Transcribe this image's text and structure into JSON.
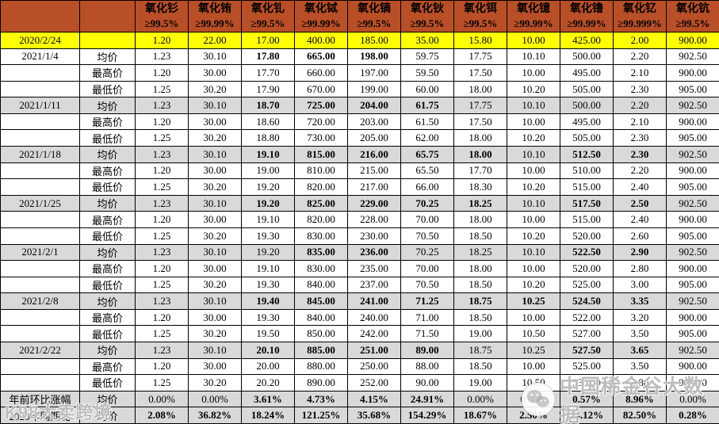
{
  "colors": {
    "header_bg": "#B94F26",
    "header_text": "#FFFFFF",
    "highlight_yellow": "#FFFF00",
    "row_gray": "#D9D9D9",
    "value_red": "#FF0000",
    "value_black": "#000000"
  },
  "watermarks": {
    "left": "K98大卖跨境",
    "right": "中国稀金谷大数据",
    "right_icon": "wechat-icon"
  },
  "table": {
    "corner_date": "",
    "corner_label": "",
    "columns": [
      {
        "name": "氧化钐",
        "purity": "≥99.5%"
      },
      {
        "name": "氧化铕",
        "purity": "≥99.99%"
      },
      {
        "name": "氧化钆",
        "purity": "≥99.5%"
      },
      {
        "name": "氧化铽",
        "purity": "≥99.99%"
      },
      {
        "name": "氧化镝",
        "purity": "≥99.5%"
      },
      {
        "name": "氧化钬",
        "purity": "≥99.5%"
      },
      {
        "name": "氧化铒",
        "purity": "≥99.5%"
      },
      {
        "name": "氧化镱",
        "purity": "≥99.99%"
      },
      {
        "name": "氧化镥",
        "purity": "≥99.99%"
      },
      {
        "name": "氧化钇",
        "purity": "≥99.999%"
      },
      {
        "name": "氧化钪",
        "purity": "≥99.5%"
      }
    ],
    "rows": [
      {
        "date": "2020/2/24",
        "label": "",
        "bg": "yellow",
        "values": [
          "1.20",
          "22.00",
          "17.00",
          "400.00",
          "185.00",
          "35.00",
          "15.80",
          "10.00",
          "425.00",
          "2.00",
          "900.00"
        ],
        "red": []
      },
      {
        "date": "2021/1/4",
        "label": "均价",
        "bg": "white",
        "values": [
          "1.23",
          "30.10",
          "17.80",
          "665.00",
          "198.00",
          "59.75",
          "17.75",
          "10.10",
          "500.00",
          "2.20",
          "902.50"
        ],
        "red": [
          2,
          3,
          4
        ]
      },
      {
        "date": "",
        "label": "最高价",
        "bg": "white",
        "values": [
          "1.20",
          "30.00",
          "17.70",
          "660.00",
          "197.00",
          "59.50",
          "17.50",
          "10.00",
          "495.00",
          "2.10",
          "900.00"
        ],
        "red": []
      },
      {
        "date": "",
        "label": "最低价",
        "bg": "white",
        "values": [
          "1.25",
          "30.20",
          "17.90",
          "670.00",
          "199.00",
          "60.00",
          "18.00",
          "10.20",
          "505.00",
          "2.30",
          "905.00"
        ],
        "red": []
      },
      {
        "date": "2021/1/11",
        "label": "均价",
        "bg": "gray",
        "values": [
          "1.23",
          "30.10",
          "18.70",
          "725.00",
          "204.00",
          "61.75",
          "17.75",
          "10.10",
          "500.00",
          "2.20",
          "902.50"
        ],
        "red": [
          2,
          3,
          4,
          5
        ]
      },
      {
        "date": "",
        "label": "最高价",
        "bg": "white",
        "values": [
          "1.20",
          "30.00",
          "18.60",
          "720.00",
          "203.00",
          "61.50",
          "17.50",
          "10.00",
          "495.00",
          "2.10",
          "900.00"
        ],
        "red": []
      },
      {
        "date": "",
        "label": "最低价",
        "bg": "white",
        "values": [
          "1.25",
          "30.20",
          "18.80",
          "730.00",
          "205.00",
          "62.00",
          "18.00",
          "10.20",
          "505.00",
          "2.30",
          "905.00"
        ],
        "red": []
      },
      {
        "date": "2021/1/18",
        "label": "均价",
        "bg": "gray",
        "values": [
          "1.23",
          "30.10",
          "19.10",
          "815.00",
          "216.00",
          "65.75",
          "18.00",
          "10.10",
          "512.50",
          "2.30",
          "902.50"
        ],
        "red": [
          2,
          3,
          4,
          5,
          6,
          8,
          9
        ]
      },
      {
        "date": "",
        "label": "最高价",
        "bg": "white",
        "values": [
          "1.20",
          "30.00",
          "19.00",
          "810.00",
          "215.00",
          "65.50",
          "17.70",
          "10.00",
          "510.00",
          "2.20",
          "900.00"
        ],
        "red": []
      },
      {
        "date": "",
        "label": "最低价",
        "bg": "white",
        "values": [
          "1.25",
          "30.20",
          "19.20",
          "820.00",
          "217.00",
          "66.00",
          "18.30",
          "10.20",
          "515.00",
          "2.40",
          "905.00"
        ],
        "red": []
      },
      {
        "date": "2021/1/25",
        "label": "均价",
        "bg": "gray",
        "values": [
          "1.23",
          "30.10",
          "19.20",
          "825.00",
          "229.00",
          "70.25",
          "18.25",
          "10.10",
          "517.50",
          "2.50",
          "902.50"
        ],
        "red": [
          2,
          3,
          4,
          5,
          6,
          8,
          9
        ]
      },
      {
        "date": "",
        "label": "最高价",
        "bg": "white",
        "values": [
          "1.20",
          "30.00",
          "19.10",
          "820.00",
          "228.00",
          "70.00",
          "18.00",
          "10.00",
          "515.00",
          "2.40",
          "900.00"
        ],
        "red": []
      },
      {
        "date": "",
        "label": "最低价",
        "bg": "white",
        "values": [
          "1.25",
          "30.20",
          "19.30",
          "830.00",
          "230.00",
          "70.50",
          "18.50",
          "10.20",
          "520.00",
          "2.60",
          "905.00"
        ],
        "red": []
      },
      {
        "date": "2021/2/1",
        "label": "均价",
        "bg": "gray",
        "values": [
          "1.23",
          "30.10",
          "19.20",
          "835.00",
          "236.00",
          "70.25",
          "18.25",
          "10.10",
          "522.50",
          "2.90",
          "902.50"
        ],
        "red": [
          3,
          4,
          8,
          9
        ]
      },
      {
        "date": "",
        "label": "最高价",
        "bg": "white",
        "values": [
          "1.20",
          "30.00",
          "19.10",
          "830.00",
          "235.00",
          "70.00",
          "18.00",
          "10.00",
          "520.00",
          "2.80",
          "900.00"
        ],
        "red": []
      },
      {
        "date": "",
        "label": "最低价",
        "bg": "white",
        "values": [
          "1.25",
          "30.20",
          "19.30",
          "840.00",
          "237.00",
          "70.50",
          "18.50",
          "10.20",
          "525.00",
          "3.00",
          "905.00"
        ],
        "red": []
      },
      {
        "date": "2021/2/8",
        "label": "均价",
        "bg": "gray",
        "values": [
          "1.23",
          "30.10",
          "19.40",
          "845.00",
          "241.00",
          "71.25",
          "18.75",
          "10.25",
          "524.50",
          "3.35",
          "902.50"
        ],
        "red": [
          2,
          3,
          4,
          5,
          6,
          7,
          8,
          9
        ]
      },
      {
        "date": "",
        "label": "最高价",
        "bg": "white",
        "values": [
          "1.20",
          "30.00",
          "19.30",
          "840.00",
          "240.00",
          "71.00",
          "18.50",
          "10.00",
          "522.00",
          "3.20",
          "900.00"
        ],
        "red": []
      },
      {
        "date": "",
        "label": "最低价",
        "bg": "white",
        "values": [
          "1.25",
          "30.20",
          "19.50",
          "850.00",
          "242.00",
          "71.50",
          "19.00",
          "10.50",
          "527.00",
          "3.50",
          "905.00"
        ],
        "red": []
      },
      {
        "date": "2021/2/22",
        "label": "均价",
        "bg": "gray",
        "values": [
          "1.23",
          "30.10",
          "20.10",
          "885.00",
          "251.00",
          "89.00",
          "18.75",
          "10.25",
          "527.50",
          "3.65",
          "902.50"
        ],
        "red": [
          2,
          3,
          4,
          5,
          8,
          9
        ]
      },
      {
        "date": "",
        "label": "最高价",
        "bg": "white",
        "values": [
          "1.20",
          "30.00",
          "20.00",
          "880.00",
          "250.00",
          "88.00",
          "18.50",
          "10.00",
          "525.00",
          "3.50",
          "900.00"
        ],
        "red": []
      },
      {
        "date": "",
        "label": "最低价",
        "bg": "white",
        "values": [
          "1.25",
          "30.20",
          "20.20",
          "890.00",
          "252.00",
          "90.00",
          "19.00",
          "10.50",
          "530.00",
          "3.80",
          "905.00"
        ],
        "red": []
      },
      {
        "date": "年前环比涨幅",
        "label": "均价",
        "bg": "gray",
        "values": [
          "0.00%",
          "0.00%",
          "3.61%",
          "4.73%",
          "4.15%",
          "24.91%",
          "0.00%",
          "0.00%",
          "0.57%",
          "8.96%",
          "0.00%"
        ],
        "red": [
          2,
          3,
          4,
          5,
          8,
          9
        ]
      },
      {
        "date": "2020年同期比",
        "label": "均价",
        "bg": "gray",
        "values": [
          "2.08%",
          "36.82%",
          "18.24%",
          "121.25%",
          "35.68%",
          "154.29%",
          "18.67%",
          "2.50%",
          "24.12%",
          "82.50%",
          "0.28%"
        ],
        "red": [
          0,
          1,
          2,
          3,
          4,
          5,
          6,
          7,
          8,
          9,
          10
        ]
      }
    ]
  }
}
